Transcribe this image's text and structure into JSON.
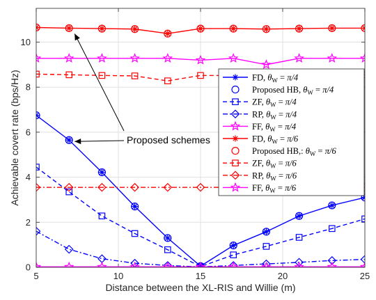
{
  "chart_data": {
    "type": "line",
    "xlabel": "Distance between the XL-RIS and Willie (m)",
    "ylabel": "Achievable covert rate (bps/Hz)",
    "xlim": [
      5,
      25
    ],
    "ylim": [
      0,
      11.5
    ],
    "xticks": [
      5,
      10,
      15,
      20,
      25
    ],
    "yticks": [
      0,
      2,
      4,
      6,
      8,
      10
    ],
    "grid": true,
    "legend_position": "right-middle",
    "x": [
      5,
      7,
      9,
      11,
      13,
      15,
      17,
      19,
      21,
      23,
      25
    ],
    "series": [
      {
        "name": "FD, θW = π/4",
        "color": "#0000ff",
        "dash": "solid",
        "marker": "asterisk",
        "values": [
          6.75,
          5.65,
          4.22,
          2.7,
          1.3,
          0.05,
          0.97,
          1.58,
          2.28,
          2.75,
          3.1
        ]
      },
      {
        "name": "Proposed HB, θW = π/4",
        "color": "#0000ff",
        "dash": "none",
        "marker": "circle",
        "values": [
          6.75,
          5.65,
          4.22,
          2.7,
          1.3,
          0.05,
          0.97,
          1.58,
          2.28,
          2.75,
          3.1
        ]
      },
      {
        "name": "ZF, θW = π/4",
        "color": "#0000ff",
        "dash": "dashed",
        "marker": "square",
        "values": [
          4.45,
          3.35,
          2.28,
          1.5,
          0.78,
          0.03,
          0.55,
          0.93,
          1.33,
          1.72,
          2.15
        ]
      },
      {
        "name": "RP, θW = π/4",
        "color": "#0000ff",
        "dash": "dashdot",
        "marker": "diamond",
        "values": [
          1.6,
          0.8,
          0.38,
          0.18,
          0.08,
          0.02,
          0.08,
          0.15,
          0.22,
          0.3,
          0.35
        ]
      },
      {
        "name": "FF, θW = π/4",
        "color": "#ff00ff",
        "dash": "solid",
        "marker": "star",
        "values": [
          0.02,
          0.02,
          0.02,
          0.02,
          0.02,
          0.02,
          0.02,
          0.02,
          0.02,
          0.02,
          0.02
        ]
      },
      {
        "name": "FD, θW = π/6",
        "color": "#ff0000",
        "dash": "solid",
        "marker": "asterisk",
        "values": [
          10.65,
          10.62,
          10.6,
          10.58,
          10.38,
          10.6,
          10.6,
          10.58,
          10.6,
          10.62,
          10.62
        ]
      },
      {
        "name": "Proposed HB,: θW = π/6",
        "color": "#ff0000",
        "dash": "none",
        "marker": "circle",
        "values": [
          10.65,
          10.62,
          10.6,
          10.58,
          10.38,
          10.6,
          10.6,
          10.58,
          10.6,
          10.62,
          10.62
        ]
      },
      {
        "name": "ZF, θW = π/6",
        "color": "#ff0000",
        "dash": "dashed",
        "marker": "square",
        "values": [
          8.58,
          8.55,
          8.52,
          8.5,
          8.28,
          8.52,
          8.52,
          8.5,
          8.52,
          8.53,
          8.55
        ]
      },
      {
        "name": "RP, θW = π/6",
        "color": "#ff0000",
        "dash": "dashdot",
        "marker": "diamond",
        "values": [
          3.55,
          3.55,
          3.55,
          3.55,
          3.55,
          3.55,
          3.55,
          3.55,
          3.55,
          3.55,
          3.55
        ]
      },
      {
        "name": "FF, θW = π/6",
        "color": "#ff00ff",
        "dash": "solid",
        "marker": "star",
        "values": [
          9.28,
          9.28,
          9.28,
          9.28,
          9.28,
          9.2,
          9.28,
          9.0,
          9.28,
          9.28,
          9.28
        ]
      }
    ],
    "legend_labels": [
      {
        "prefix": "FD, ",
        "suffix": "π/4"
      },
      {
        "prefix": "Proposed HB, ",
        "suffix": "π/4"
      },
      {
        "prefix": "ZF, ",
        "suffix": "π/4"
      },
      {
        "prefix": "RP, ",
        "suffix": "π/4"
      },
      {
        "prefix": "FF, ",
        "suffix": "π/4"
      },
      {
        "prefix": "FD, ",
        "suffix": "π/6"
      },
      {
        "prefix": "Proposed HB,: ",
        "suffix": "π/6"
      },
      {
        "prefix": "ZF, ",
        "suffix": "π/6"
      },
      {
        "prefix": "RP, ",
        "suffix": "π/6"
      },
      {
        "prefix": "FF, ",
        "suffix": "π/6"
      }
    ],
    "annotations": [
      {
        "text": "Proposed schemes",
        "arrow_targets": [
          {
            "x": 7,
            "y": 10.62
          },
          {
            "x": 7,
            "y": 5.65
          }
        ]
      }
    ]
  }
}
